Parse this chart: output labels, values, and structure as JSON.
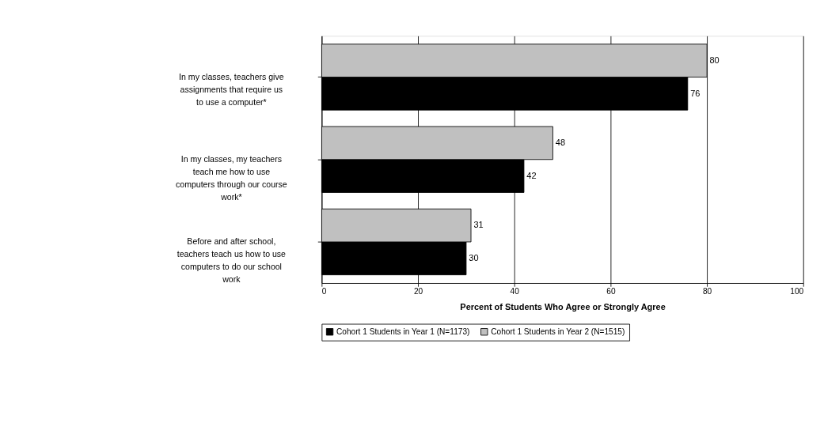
{
  "chart_data": {
    "type": "bar",
    "orientation": "horizontal",
    "xlabel": "Percent of Students Who Agree or Strongly Agree",
    "categories": [
      "In my classes, teachers give assignments that require us to use a computer*",
      "In my classes, my teachers teach me how to use computers through our course work*",
      "Before and after school, teachers teach us how to use computers to do our school work"
    ],
    "series": [
      {
        "name": "Cohort 1 Students in Year 1 (N=1173)",
        "color": "#000000",
        "values": [
          76,
          42,
          30
        ]
      },
      {
        "name": "Cohort 1 Students in Year 2 (N=1515)",
        "color": "#c0c0c0",
        "values": [
          80,
          48,
          31
        ]
      }
    ],
    "xlim": [
      0,
      100
    ],
    "xticks": [
      0,
      20,
      40,
      60,
      80,
      100
    ],
    "grid": "x",
    "legend": "bottom",
    "data_labels": true
  }
}
